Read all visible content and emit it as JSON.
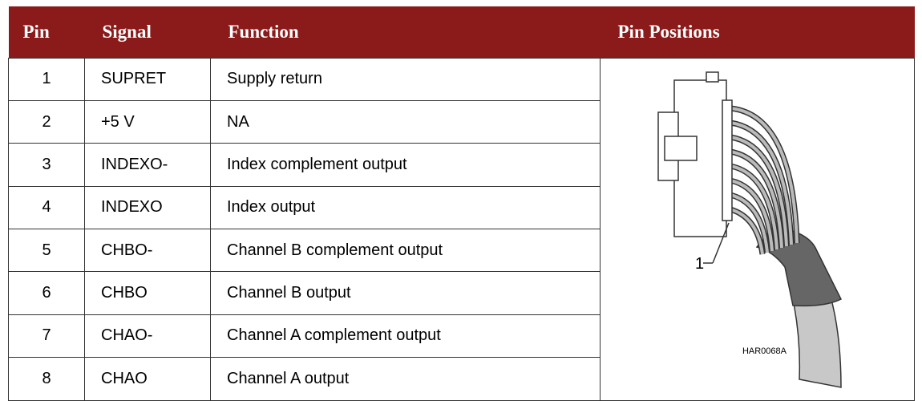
{
  "table": {
    "header": [
      "Pin",
      "Signal",
      "Function",
      "Pin Positions"
    ],
    "rows": [
      [
        "1",
        "SUPRET",
        "Supply return"
      ],
      [
        "2",
        "+5 V",
        "NA"
      ],
      [
        "3",
        "INDEXO-",
        "Index complement output"
      ],
      [
        "4",
        "INDEXO",
        "Index output"
      ],
      [
        "5",
        "CHBO-",
        "Channel B complement output"
      ],
      [
        "6",
        "CHBO",
        "Channel B output"
      ],
      [
        "7",
        "CHAO-",
        "Channel A complement output"
      ],
      [
        "8",
        "CHAO",
        "Channel A output"
      ]
    ]
  },
  "figure": {
    "pin_label": "1",
    "code": "HAR0068A"
  }
}
